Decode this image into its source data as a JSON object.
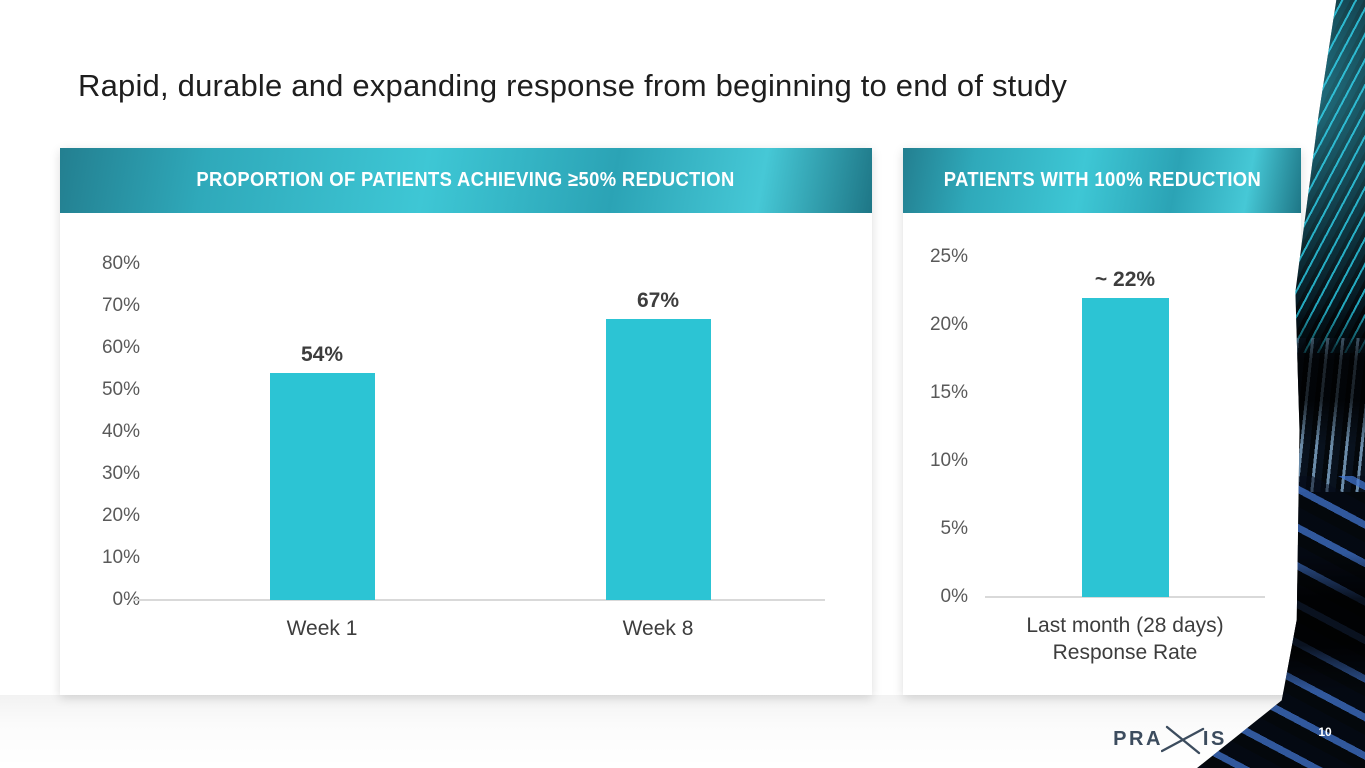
{
  "slide": {
    "title": "Rapid, durable and expanding response from beginning to end of study",
    "page_number": "10",
    "logo": {
      "left": "PRA",
      "right": "IS",
      "full_name": "PRAXIS"
    }
  },
  "colors": {
    "bar": "#2cc4d4",
    "header_teal_dark": "#237f90",
    "header_teal_bright": "#3ec7d5",
    "axis_line": "#d9d9d9",
    "tick_label": "#595959",
    "value_label": "#3d3d3d",
    "title_text": "#1e1e1e",
    "logo_text": "#3c4c5e",
    "wedge_background": "#04080c",
    "fiber_cyan": "#2acde8",
    "fiber_blue": "#4073cd"
  },
  "chart_data": [
    {
      "type": "bar",
      "title": "PROPORTION OF PATIENTS ACHIEVING ≥50% REDUCTION",
      "categories": [
        "Week 1",
        "Week 8"
      ],
      "values": [
        54,
        67
      ],
      "value_labels": [
        "54%",
        "67%"
      ],
      "ylim": [
        0,
        80
      ],
      "ytick_values": [
        0,
        10,
        20,
        30,
        40,
        50,
        60,
        70,
        80
      ],
      "ytick_labels": [
        "0%",
        "10%",
        "20%",
        "30%",
        "40%",
        "50%",
        "60%",
        "70%",
        "80%"
      ],
      "grid": false,
      "legend": "none"
    },
    {
      "type": "bar",
      "title": "PATIENTS WITH 100% REDUCTION",
      "categories": [
        "Last month (28 days)\nResponse Rate"
      ],
      "values": [
        22
      ],
      "value_labels": [
        "~ 22%"
      ],
      "ylim": [
        0,
        25
      ],
      "ytick_values": [
        0,
        5,
        10,
        15,
        20,
        25
      ],
      "ytick_labels": [
        "0%",
        "5%",
        "10%",
        "15%",
        "20%",
        "25%"
      ],
      "grid": false,
      "legend": "none"
    }
  ]
}
